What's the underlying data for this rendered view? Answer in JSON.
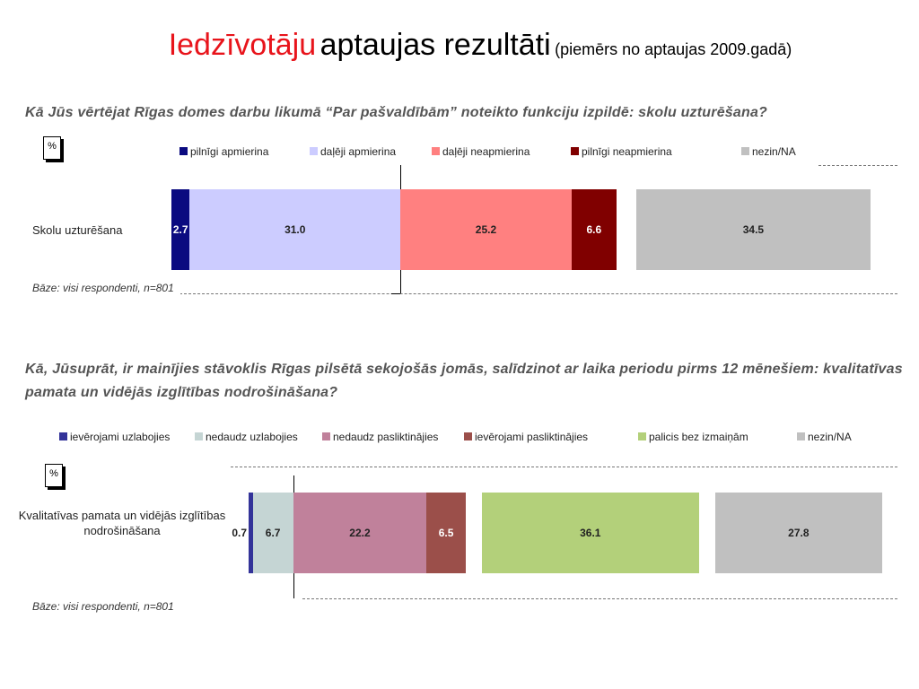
{
  "slide": {
    "title_highlight": "Iedzīvotāju",
    "title_main": "aptaujas rezultāti",
    "title_note": "(piemērs no aptaujas 2009.gadā)"
  },
  "chart_data": [
    {
      "type": "stacked_bar_h",
      "title": "Kā Jūs vērtējat Rīgas domes darbu likumā “Par pašvaldībām” noteikto funkciju izpildē: skolu uzturēšana?",
      "unit_label": "%",
      "categories": [
        "Skolu uzturēšana"
      ],
      "series": [
        {
          "name": "pilnīgi apmierina",
          "color": "#0a0a80",
          "values": [
            2.7
          ]
        },
        {
          "name": "daļēji apmierina",
          "color": "#ccccff",
          "values": [
            31.0
          ],
          "value_labels": [
            "31.0"
          ]
        },
        {
          "name": "daļēji neapmierina",
          "color": "#ff8080",
          "values": [
            25.2
          ]
        },
        {
          "name": "pilnīgi neapmierina",
          "color": "#800000",
          "values": [
            6.6
          ]
        },
        {
          "name": "nezin/NA",
          "color": "#c0c0c0",
          "values": [
            34.5
          ]
        }
      ],
      "note": "Bāze: visi respondenti, n=801"
    },
    {
      "type": "stacked_bar_h",
      "title": "Kā, Jūsuprāt, ir mainījies stāvoklis Rīgas pilsētā sekojošās jomās, salīdzinot ar laika periodu pirms 12 mēnešiem: kvalitatīvas pamata un vidējās izglītības nodrošināšana?",
      "unit_label": "%",
      "categories": [
        "Kvalitatīvas pamata un vidējās izglītības nodrošināšana"
      ],
      "series": [
        {
          "name": "ievērojami uzlabojies",
          "color": "#333399",
          "values": [
            0.7
          ]
        },
        {
          "name": "nedaudz uzlabojies",
          "color": "#c5d5d4",
          "values": [
            6.7
          ]
        },
        {
          "name": "nedaudz pasliktinājies",
          "color": "#c0819b",
          "values": [
            22.2
          ]
        },
        {
          "name": "ievērojami pasliktinājies",
          "color": "#9b4f4a",
          "values": [
            6.5
          ]
        },
        {
          "name": "palicis bez izmaiņām",
          "color": "#b3d07a",
          "values": [
            36.1
          ]
        },
        {
          "name": "nezin/NA",
          "color": "#c0c0c0",
          "values": [
            27.8
          ]
        }
      ],
      "note": "Bāze: visi respondenti, n=801"
    }
  ]
}
